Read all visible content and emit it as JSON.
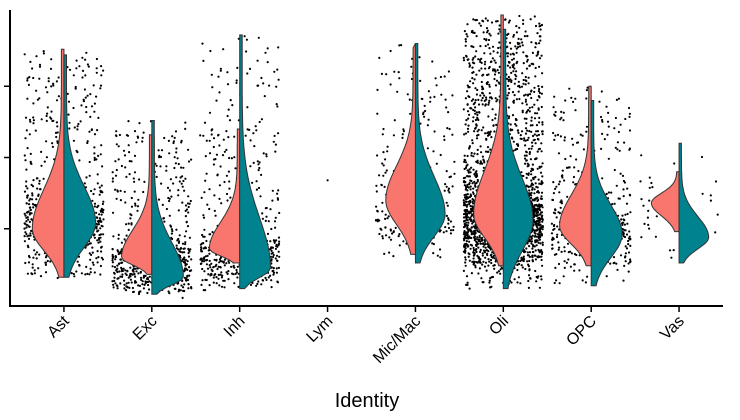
{
  "chart_data": {
    "type": "violin",
    "xlabel": "Identity",
    "ylabel": "",
    "categories": [
      "Ast",
      "Exc",
      "Inh",
      "Lym",
      "Mic/Mac",
      "Oli",
      "OPC",
      "Vas"
    ],
    "ylim": [
      0,
      10
    ],
    "colors": {
      "left_half": "#F8766D",
      "right_half": "#00838F",
      "point": "#000000"
    },
    "violins": [
      {
        "category": "Ast",
        "left": {
          "min": 0.8,
          "max": 8.8,
          "mode": 2.5,
          "width": 0.48
        },
        "right": {
          "min": 0.8,
          "max": 8.6,
          "mode": 2.7,
          "width": 0.48
        },
        "points": 700
      },
      {
        "category": "Exc",
        "left": {
          "min": 0.9,
          "max": 5.8,
          "mode": 1.5,
          "width": 0.46
        },
        "right": {
          "min": 0.2,
          "max": 6.3,
          "mode": 0.8,
          "width": 0.48
        },
        "points": 600
      },
      {
        "category": "Inh",
        "left": {
          "min": 1.3,
          "max": 6.0,
          "mode": 1.8,
          "width": 0.46
        },
        "right": {
          "min": 0.4,
          "max": 9.3,
          "mode": 1.1,
          "width": 0.47
        },
        "points": 600
      },
      {
        "category": "Lym",
        "left": null,
        "right": null,
        "points": 1
      },
      {
        "category": "Mic/Mac",
        "left": {
          "min": 1.6,
          "max": 9.0,
          "mode": 3.5,
          "width": 0.45
        },
        "right": {
          "min": 1.3,
          "max": 9.0,
          "mode": 3.0,
          "width": 0.45
        },
        "points": 300
      },
      {
        "category": "Oli",
        "left": {
          "min": 1.2,
          "max": 10.0,
          "mode": 3.0,
          "width": 0.45
        },
        "right": {
          "min": 0.4,
          "max": 9.5,
          "mode": 2.8,
          "width": 0.45
        },
        "points": 2500
      },
      {
        "category": "OPC",
        "left": {
          "min": 1.2,
          "max": 7.5,
          "mode": 2.6,
          "width": 0.48
        },
        "right": {
          "min": 0.5,
          "max": 7.0,
          "mode": 2.3,
          "width": 0.47
        },
        "points": 450
      },
      {
        "category": "Vas",
        "left": {
          "min": 2.4,
          "max": 4.5,
          "mode": 3.4,
          "width": 0.42
        },
        "right": {
          "min": 1.3,
          "max": 5.5,
          "mode": 2.2,
          "width": 0.45
        },
        "points": 40
      }
    ]
  }
}
